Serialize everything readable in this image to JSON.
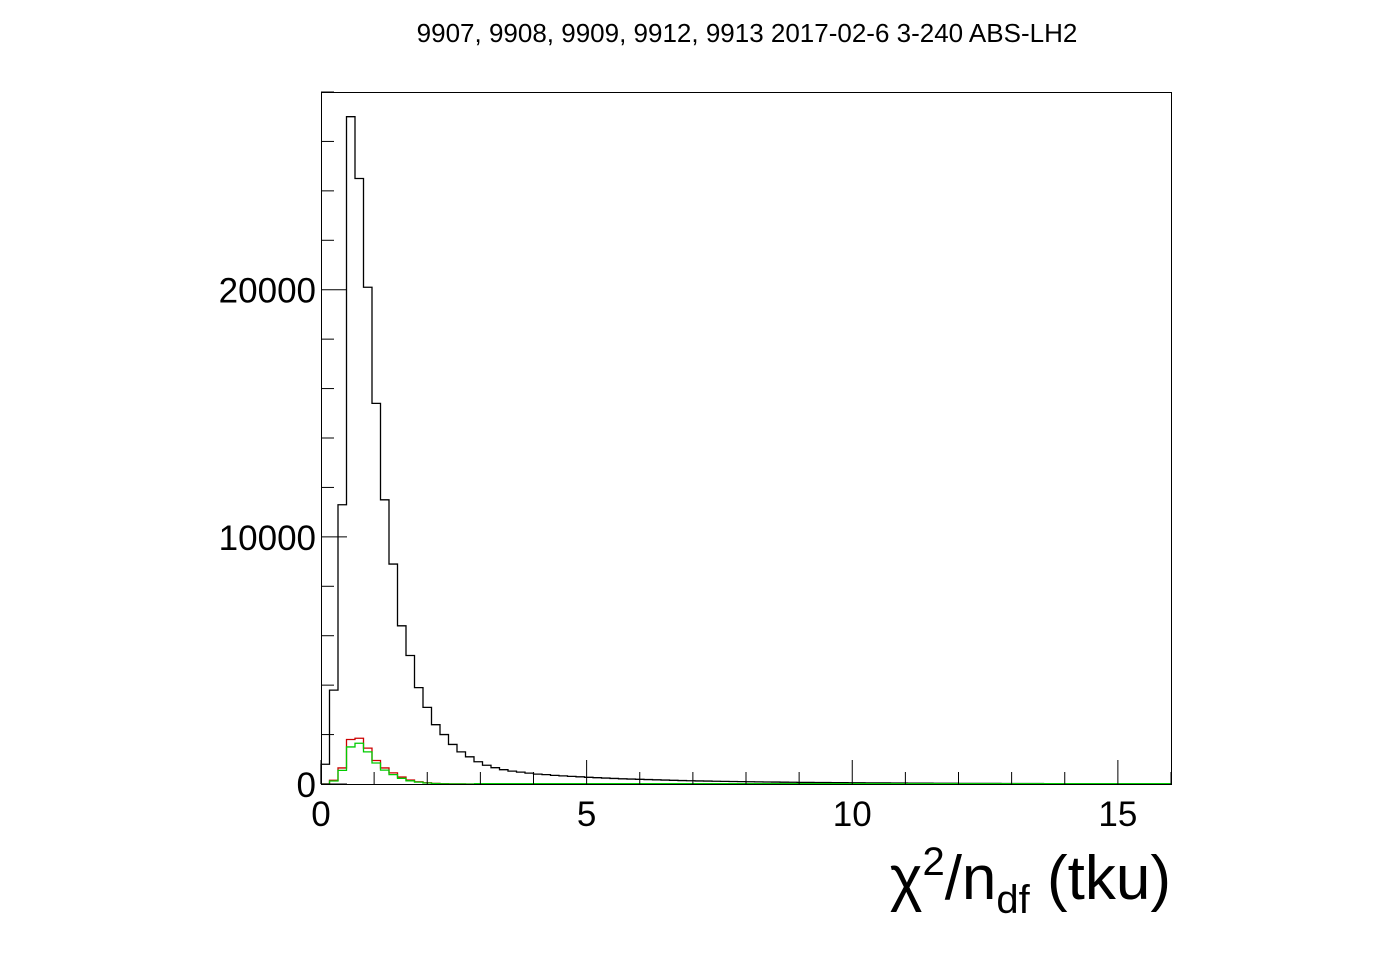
{
  "chart_data": {
    "type": "histogram",
    "title": "9907, 9908, 9909, 9912, 9913 2017-02-6 3-240 ABS-LH2",
    "xlabel": {
      "chi": "χ",
      "sup": "2",
      "slash_n": "/n",
      "sub": "df",
      "rest": " (tku)"
    },
    "ylabel": "",
    "xlim": [
      0,
      16
    ],
    "ylim": [
      0,
      28000
    ],
    "bin_width": 0.16,
    "x_ticks": [
      "0",
      "5",
      "10",
      "15"
    ],
    "y_ticks": [
      "0",
      "10000",
      "20000"
    ],
    "x_tick_values": [
      0,
      5,
      10,
      15
    ],
    "y_tick_values": [
      0,
      10000,
      20000
    ],
    "grid": false,
    "legend": false,
    "series": [
      {
        "color": "#000000",
        "values": [
          800,
          3800,
          11300,
          27000,
          24500,
          20100,
          15400,
          11500,
          8900,
          6400,
          5200,
          3900,
          3100,
          2400,
          2000,
          1600,
          1300,
          1100,
          900,
          760,
          660,
          580,
          520,
          480,
          440,
          400,
          380,
          350,
          330,
          310,
          290,
          270,
          255,
          240,
          225,
          210,
          200,
          190,
          180,
          170,
          160,
          150,
          140,
          132,
          124,
          118,
          112,
          106,
          100,
          95,
          90,
          86,
          82,
          78,
          74,
          70,
          67,
          64,
          61,
          58,
          55,
          52,
          50,
          48,
          46,
          44,
          42,
          40,
          38,
          36,
          34,
          32,
          30,
          28,
          27,
          26,
          25,
          24,
          23,
          22,
          21,
          20,
          19,
          18,
          17,
          16,
          15,
          14,
          14,
          13,
          12,
          12,
          11,
          11,
          10,
          10,
          10,
          9,
          9,
          8
        ]
      },
      {
        "color": "#cc0000",
        "values": [
          0,
          150,
          650,
          1800,
          1850,
          1450,
          950,
          650,
          450,
          280,
          160,
          90,
          50,
          25,
          12,
          6,
          3,
          1
        ]
      },
      {
        "color": "#00cc00",
        "values": [
          0,
          120,
          550,
          1500,
          1650,
          1300,
          850,
          560,
          380,
          230,
          130,
          75,
          40,
          20,
          10,
          5,
          2,
          1
        ]
      }
    ]
  }
}
